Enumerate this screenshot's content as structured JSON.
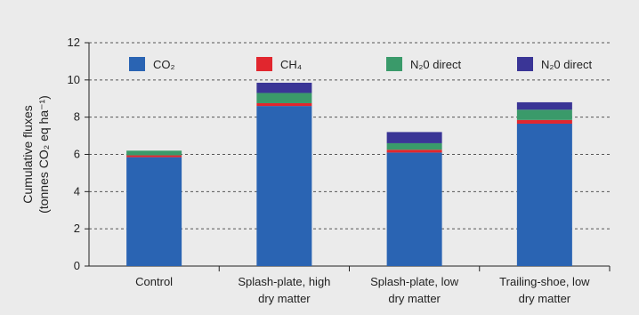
{
  "chart_data": {
    "type": "bar",
    "stacked": true,
    "title": "",
    "xlabel": "",
    "ylabel_line1": "Cumulative fluxes",
    "ylabel_line2": "(tonnes CO₂ eq ha⁻¹)",
    "ylim": [
      0,
      12
    ],
    "yticks": [
      "0",
      "2",
      "4",
      "6",
      "8",
      "10",
      "12"
    ],
    "grid": "dashed horizontal",
    "legend_position": "top",
    "categories": [
      [
        "Control"
      ],
      [
        "Splash-plate, high",
        "dry matter"
      ],
      [
        "Splash-plate, low",
        "dry matter"
      ],
      [
        "Trailing-shoe, low",
        "dry matter"
      ]
    ],
    "series": [
      {
        "name": "CO₂",
        "color": "#2a64b3",
        "values": [
          5.85,
          8.6,
          6.1,
          7.65
        ]
      },
      {
        "name": "CH₄",
        "color": "#e1262e",
        "values": [
          0.1,
          0.15,
          0.15,
          0.2
        ]
      },
      {
        "name": "N₂0 direct",
        "color": "#3a9a6a",
        "values": [
          0.25,
          0.55,
          0.35,
          0.55
        ]
      },
      {
        "name": "N₂0 direct",
        "color": "#3a3596",
        "values": [
          0.0,
          0.55,
          0.6,
          0.4
        ]
      }
    ]
  }
}
